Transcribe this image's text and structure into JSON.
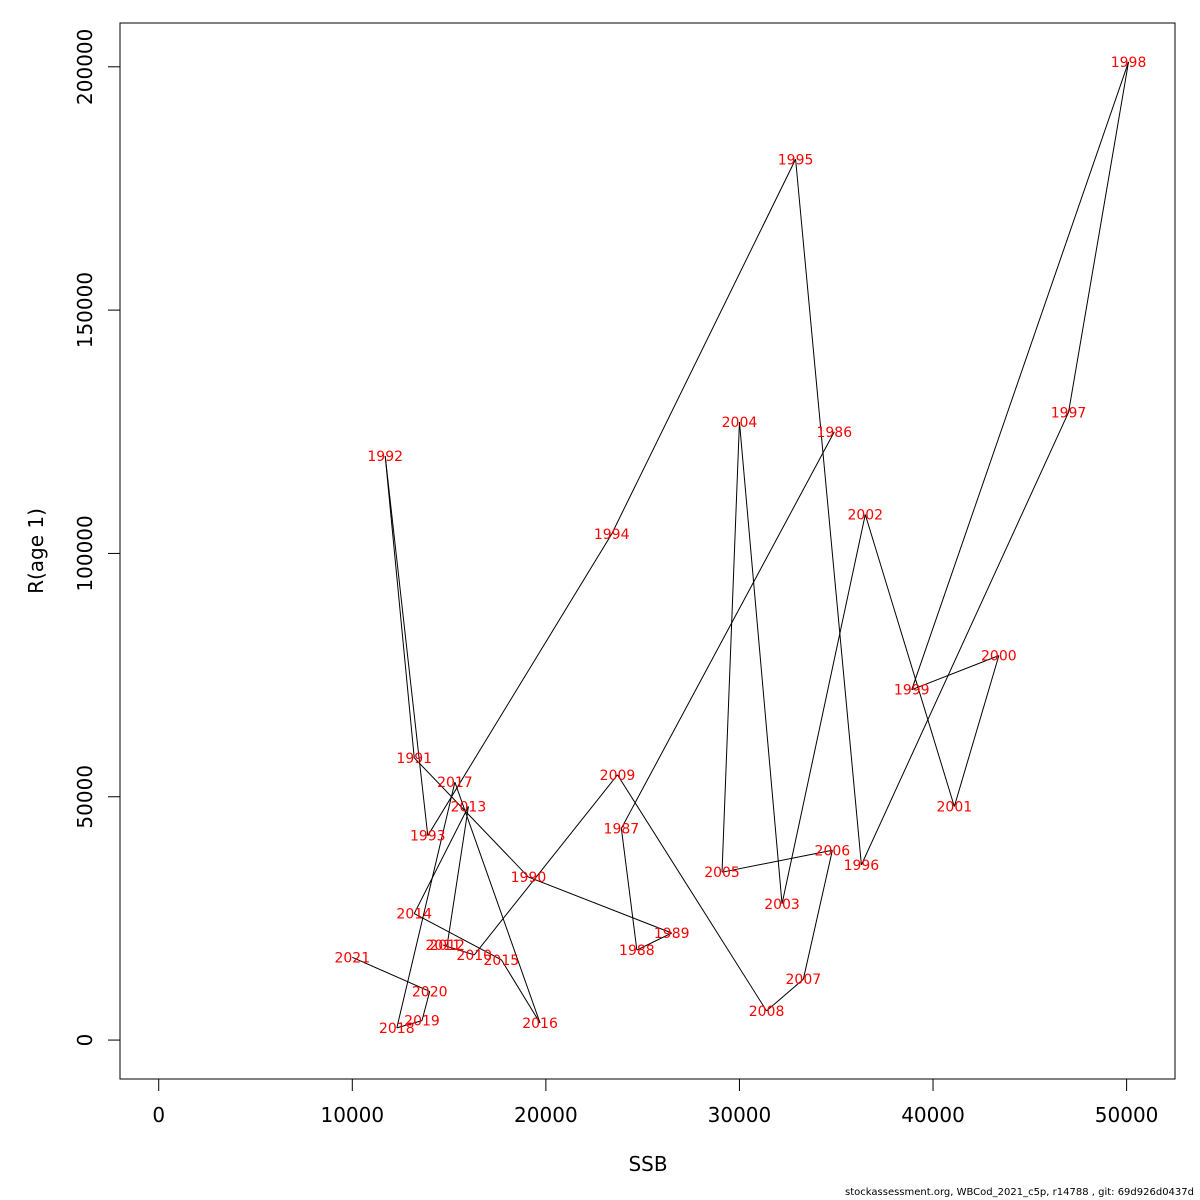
{
  "chart_data": {
    "type": "line",
    "xlabel": "SSB",
    "ylabel": "R(age 1)",
    "xlim": [
      -2000,
      52500
    ],
    "ylim": [
      -8000,
      209000
    ],
    "x_ticks": [
      0,
      10000,
      20000,
      30000,
      40000,
      50000
    ],
    "y_ticks": [
      0,
      50000,
      100000,
      150000,
      200000
    ],
    "point_label_color": "#ff0000",
    "line_color": "#000000",
    "points": [
      {
        "year": "1986",
        "x": 34900,
        "y": 125000
      },
      {
        "year": "1987",
        "x": 23900,
        "y": 43500
      },
      {
        "year": "1988",
        "x": 24700,
        "y": 18500
      },
      {
        "year": "1989",
        "x": 26500,
        "y": 22000
      },
      {
        "year": "1990",
        "x": 19100,
        "y": 33500
      },
      {
        "year": "1991",
        "x": 13200,
        "y": 58000
      },
      {
        "year": "1992",
        "x": 11700,
        "y": 120000
      },
      {
        "year": "1993",
        "x": 13900,
        "y": 42000
      },
      {
        "year": "1994",
        "x": 23400,
        "y": 104000
      },
      {
        "year": "1995",
        "x": 32900,
        "y": 181000
      },
      {
        "year": "1996",
        "x": 36300,
        "y": 36000
      },
      {
        "year": "1997",
        "x": 47000,
        "y": 129000
      },
      {
        "year": "1998",
        "x": 50100,
        "y": 201000
      },
      {
        "year": "1999",
        "x": 38900,
        "y": 72000
      },
      {
        "year": "2000",
        "x": 43400,
        "y": 79000
      },
      {
        "year": "2001",
        "x": 41100,
        "y": 48000
      },
      {
        "year": "2002",
        "x": 36500,
        "y": 108000
      },
      {
        "year": "2003",
        "x": 32200,
        "y": 28000
      },
      {
        "year": "2004",
        "x": 30000,
        "y": 127000
      },
      {
        "year": "2005",
        "x": 29100,
        "y": 34500
      },
      {
        "year": "2006",
        "x": 34800,
        "y": 39000
      },
      {
        "year": "2007",
        "x": 33300,
        "y": 12500
      },
      {
        "year": "2008",
        "x": 31400,
        "y": 6000
      },
      {
        "year": "2009",
        "x": 23700,
        "y": 54500
      },
      {
        "year": "2010",
        "x": 16300,
        "y": 17500
      },
      {
        "year": "2011",
        "x": 14700,
        "y": 19500
      },
      {
        "year": "2012",
        "x": 14900,
        "y": 19500
      },
      {
        "year": "2013",
        "x": 16000,
        "y": 48000
      },
      {
        "year": "2014",
        "x": 13200,
        "y": 26000
      },
      {
        "year": "2015",
        "x": 17700,
        "y": 16500
      },
      {
        "year": "2016",
        "x": 19700,
        "y": 3500
      },
      {
        "year": "2017",
        "x": 15300,
        "y": 53000
      },
      {
        "year": "2018",
        "x": 12300,
        "y": 2500
      },
      {
        "year": "2019",
        "x": 13600,
        "y": 4000
      },
      {
        "year": "2020",
        "x": 14000,
        "y": 10000
      },
      {
        "year": "2021",
        "x": 10000,
        "y": 17000
      }
    ]
  },
  "footer_text": "stockassessment.org, WBCod_2021_c5p, r14788 , git: 69d926d0437d"
}
